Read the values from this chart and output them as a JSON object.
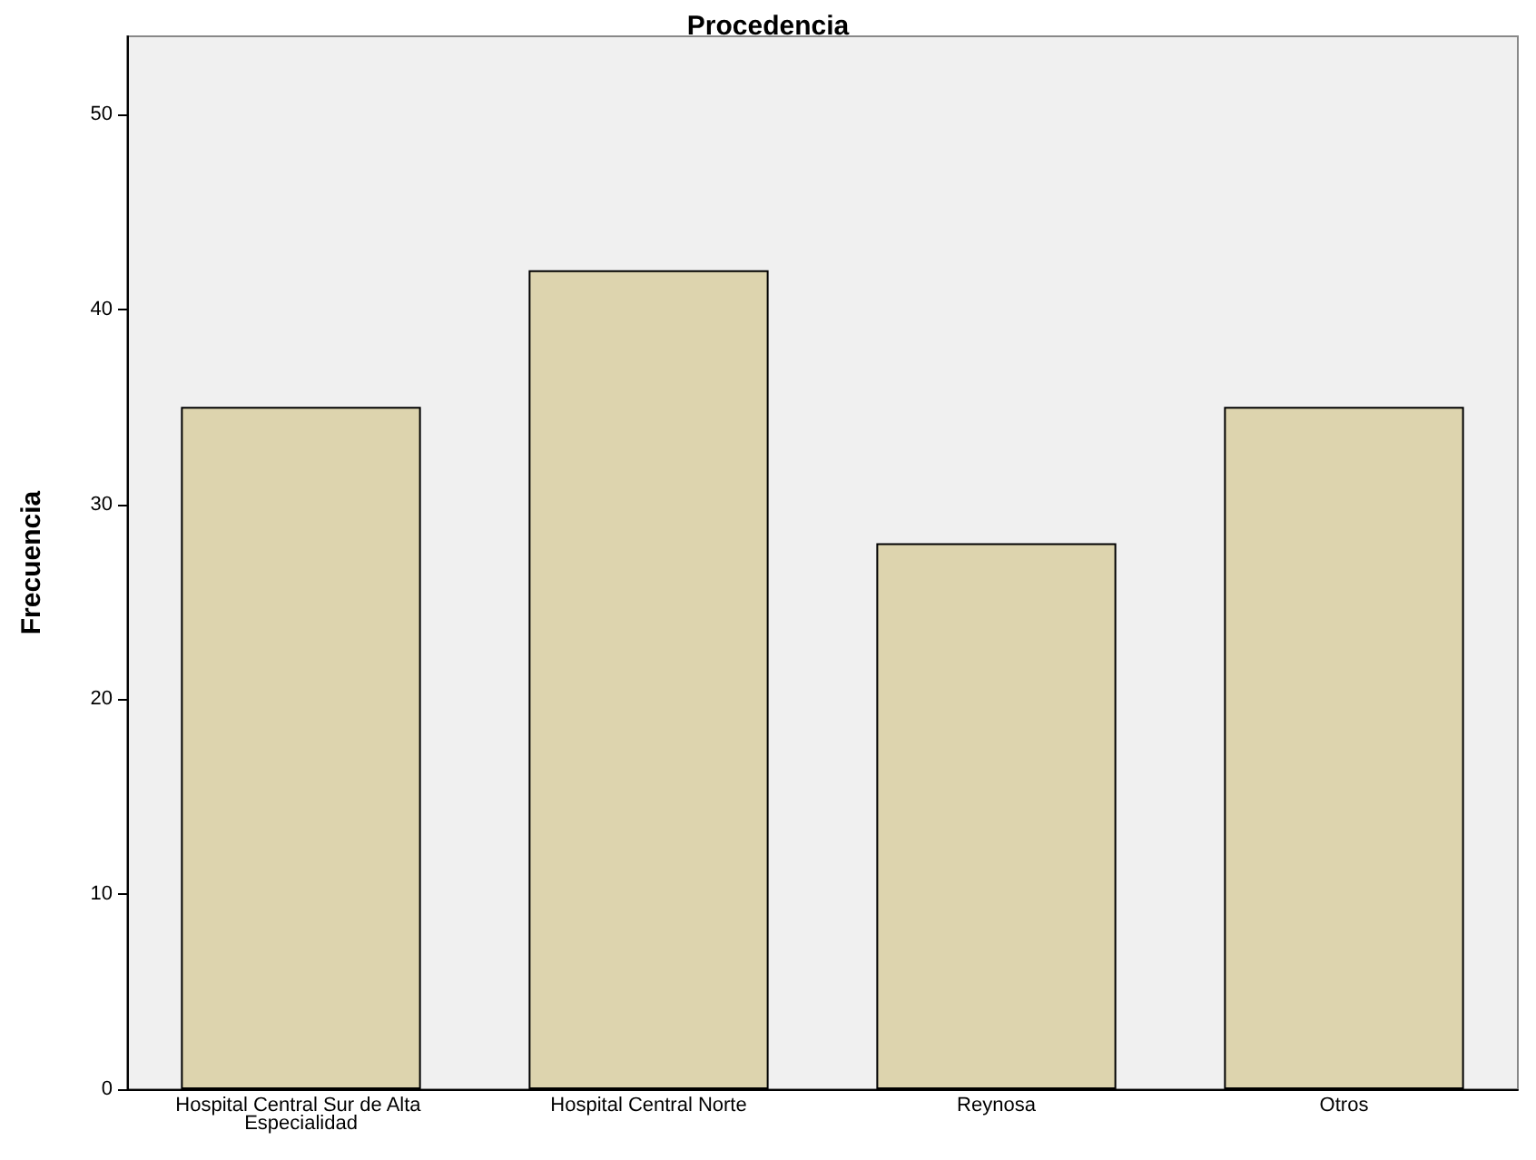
{
  "chart_data": {
    "type": "bar",
    "title": "Procedencia",
    "ylabel": "Frecuencia",
    "categories": [
      "Hospital Central Sur de Alta Especialidad",
      "Hospital Central Norte",
      "Reynosa",
      "Otros"
    ],
    "values": [
      35,
      42,
      28,
      35
    ],
    "color": "#ddd4ae",
    "ylim": [
      0,
      54
    ],
    "yticks": [
      0,
      10,
      20,
      30,
      40,
      50
    ],
    "grid": false
  }
}
